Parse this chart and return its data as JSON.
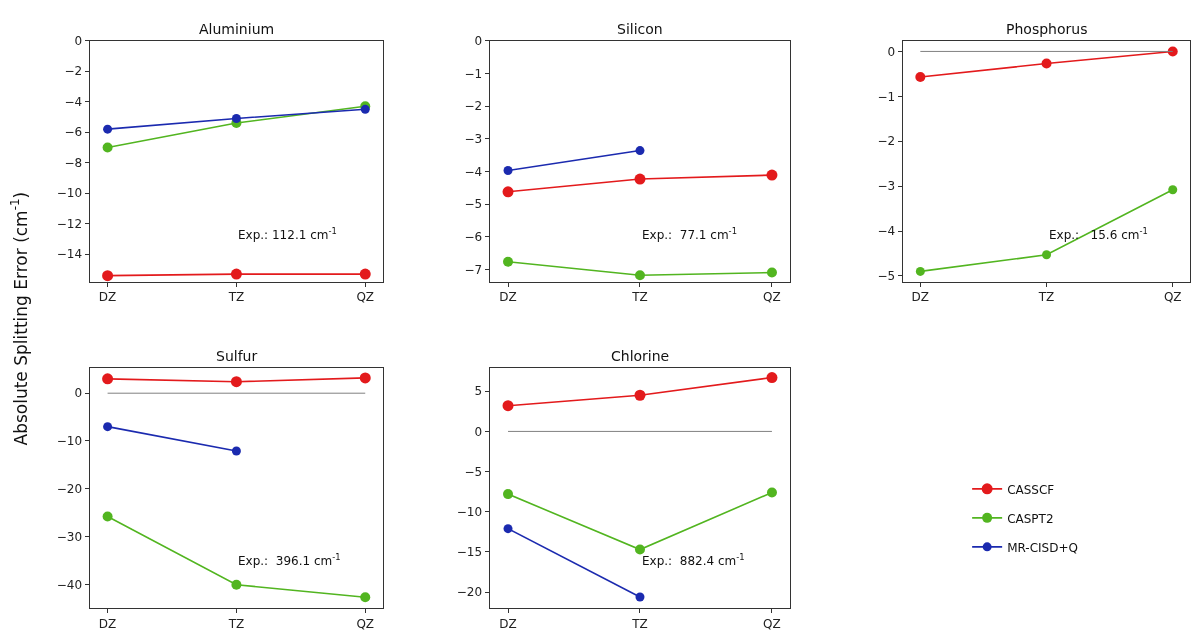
{
  "chart_data": [
    {
      "type": "line",
      "title": "Aluminium",
      "ylabel": "Absolute Splitting Error (cm$^{-1}$)",
      "categories": [
        "DZ",
        "TZ",
        "QZ"
      ],
      "marker": "circle",
      "legend": "right",
      "ylim": [
        -15.8,
        0
      ],
      "yticks": [
        {
          "value": -14,
          "label": "−14"
        },
        {
          "value": -12,
          "label": "−12"
        },
        {
          "value": -10,
          "label": "−10"
        },
        {
          "value": -8,
          "label": "−8"
        },
        {
          "value": -6,
          "label": "−6"
        },
        {
          "value": -4,
          "label": "−4"
        },
        {
          "value": -2,
          "label": "−2"
        },
        0
      ],
      "annotations": [
        "Exp.: 112.1 cm$^{-1}$"
      ],
      "series": [
        {
          "name": "CASSCF",
          "color": "#e31a1c",
          "values": [
            -15.4,
            -15.3,
            -15.3
          ]
        },
        {
          "name": "CASPT2",
          "color": "#52b520",
          "values": [
            -7.0,
            -5.4,
            -4.3
          ]
        },
        {
          "name": "MR-CISD+Q",
          "color": "#1b2aaf",
          "values": [
            -5.8,
            -5.1,
            -4.5
          ]
        }
      ]
    },
    {
      "type": "line",
      "title": "Silicon",
      "categories": [
        "DZ",
        "TZ",
        "QZ"
      ],
      "marker": "circle",
      "legend": "right",
      "ylim": [
        -7.37,
        0
      ],
      "yticks": [
        {
          "value": -7,
          "label": "−7"
        },
        {
          "value": -6,
          "label": "−6"
        },
        {
          "value": -5,
          "label": "−5"
        },
        {
          "value": -4,
          "label": "−4"
        },
        {
          "value": -3,
          "label": "−3"
        },
        {
          "value": -2,
          "label": "−2"
        },
        {
          "value": -1,
          "label": "−1"
        },
        0
      ],
      "annotations": [
        "Exp.:  77.1 cm$^{-1}$"
      ],
      "series": [
        {
          "name": "CASSCF",
          "color": "#e31a1c",
          "values": [
            -4.62,
            -4.23,
            -4.11
          ]
        },
        {
          "name": "CASPT2",
          "color": "#52b520",
          "values": [
            -6.76,
            -7.17,
            -7.09
          ]
        },
        {
          "name": "MR-CISD+Q",
          "color": "#1b2aaf",
          "values": [
            -3.97,
            -3.36,
            null
          ]
        }
      ]
    },
    {
      "type": "line",
      "title": "Phosphorus",
      "categories": [
        "DZ",
        "TZ",
        "QZ"
      ],
      "marker": "circle",
      "legend": "right",
      "ylim": [
        -5.13,
        0.24
      ],
      "yticks": [
        {
          "value": -5,
          "label": "−5"
        },
        {
          "value": -4,
          "label": "−4"
        },
        {
          "value": -3,
          "label": "−3"
        },
        {
          "value": -2,
          "label": "−2"
        },
        {
          "value": -1,
          "label": "−1"
        },
        0
      ],
      "annotations": [
        "Exp.:   15.6 cm$^{-1}$"
      ],
      "ref_lines": [
        {
          "axis": "y",
          "value": 0,
          "color": "#808080"
        }
      ],
      "series": [
        {
          "name": "CASSCF",
          "color": "#e31a1c",
          "values": [
            -0.57,
            -0.27,
            0
          ]
        },
        {
          "name": "CASPT2",
          "color": "#52b520",
          "values": [
            -4.9,
            -4.53,
            -3.08
          ]
        }
      ]
    },
    {
      "type": "line",
      "title": "Sulfur",
      "categories": [
        "DZ",
        "TZ",
        "QZ"
      ],
      "marker": "circle",
      "legend": "right",
      "ylim": [
        -45,
        5.2
      ],
      "yticks": [
        {
          "value": -40,
          "label": "−40"
        },
        {
          "value": -30,
          "label": "−30"
        },
        {
          "value": -20,
          "label": "−20"
        },
        {
          "value": -10,
          "label": "−10"
        },
        0
      ],
      "annotations": [
        "Exp.:  396.1 cm$^{-1}$"
      ],
      "ref_lines": [
        {
          "axis": "y",
          "value": 0,
          "color": "#808080"
        }
      ],
      "series": [
        {
          "name": "CASSCF",
          "color": "#e31a1c",
          "values": [
            3.0,
            2.4,
            3.2
          ]
        },
        {
          "name": "CASPT2",
          "color": "#52b520",
          "values": [
            -25.8,
            -40.1,
            -42.7
          ]
        },
        {
          "name": "MR-CISD+Q",
          "color": "#1b2aaf",
          "values": [
            -7.0,
            -12.1,
            null
          ]
        }
      ]
    },
    {
      "type": "line",
      "title": "Chlorine",
      "categories": [
        "DZ",
        "TZ",
        "QZ"
      ],
      "marker": "circle",
      "legend": "right",
      "ylim": [
        -22,
        7.85
      ],
      "yticks": [
        {
          "value": -20,
          "label": "−20"
        },
        {
          "value": -15,
          "label": "−15"
        },
        {
          "value": -10,
          "label": "−10"
        },
        {
          "value": -5,
          "label": "−5"
        },
        0,
        5
      ],
      "annotations": [
        "Exp.:  882.4 cm$^{-1}$"
      ],
      "ref_lines": [
        {
          "axis": "y",
          "value": 0,
          "color": "#808080"
        }
      ],
      "series": [
        {
          "name": "CASSCF",
          "color": "#e31a1c",
          "values": [
            3.2,
            4.5,
            6.7
          ]
        },
        {
          "name": "CASPT2",
          "color": "#52b520",
          "values": [
            -7.8,
            -14.7,
            -7.6
          ]
        },
        {
          "name": "MR-CISD+Q",
          "color": "#1b2aaf",
          "values": [
            -12.1,
            -20.6,
            null
          ]
        }
      ]
    }
  ]
}
